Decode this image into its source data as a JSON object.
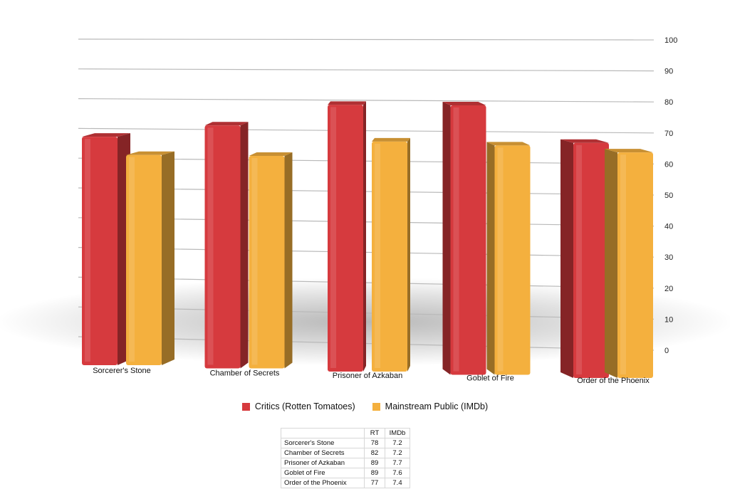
{
  "chart_data": {
    "type": "bar",
    "categories": [
      "Sorcerer's Stone",
      "Chamber of Secrets",
      "Prisoner of Azkaban",
      "Goblet of Fire",
      "Order of the Phoenix"
    ],
    "series": [
      {
        "name": "Critics (Rotten Tomatoes)",
        "values": [
          78,
          82,
          89,
          89,
          77
        ],
        "color": "#d63a3e"
      },
      {
        "name": "Mainstream Public (IMDb)",
        "values": [
          72,
          72,
          77,
          76,
          74
        ],
        "color": "#f4b03e"
      }
    ],
    "ylim": [
      0,
      100
    ],
    "yticks": [
      0,
      10,
      20,
      30,
      40,
      50,
      60,
      70,
      80,
      90,
      100
    ],
    "y_axis_side": "right",
    "grid": true,
    "legend_position": "bottom-center",
    "style": "3d-perspective"
  },
  "table": {
    "headers": [
      "",
      "RT",
      "IMDb"
    ],
    "rows": [
      [
        "Sorcerer's Stone",
        "78",
        "7.2"
      ],
      [
        "Chamber of Secrets",
        "82",
        "7.2"
      ],
      [
        "Prisoner of Azkaban",
        "89",
        "7.7"
      ],
      [
        "Goblet of Fire",
        "89",
        "7.6"
      ],
      [
        "Order of the Phoenix",
        "77",
        "7.4"
      ]
    ]
  }
}
